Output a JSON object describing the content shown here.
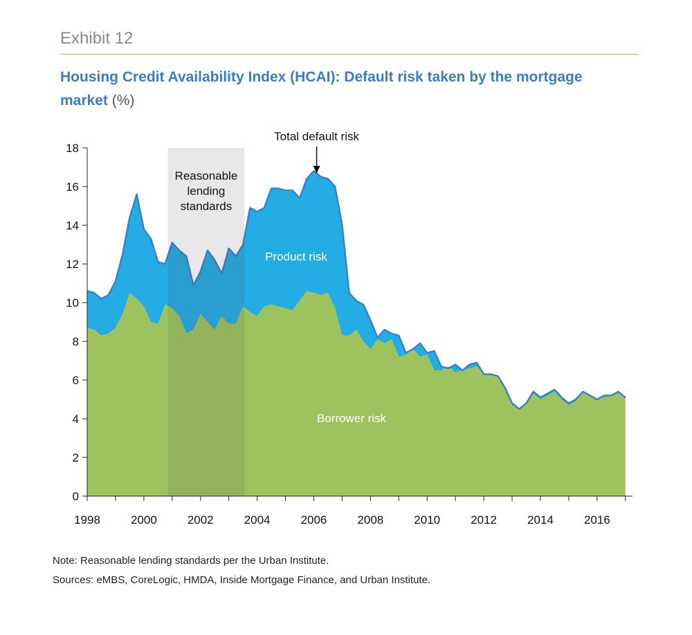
{
  "exhibit": "Exhibit 12",
  "title_main": "Housing Credit Availability Index (HCAI): Default risk taken by the mortgage market",
  "title_unit": "(%)",
  "notes": [
    "Note: Reasonable lending standards per the Urban Institute.",
    "Sources: eMBS, CoreLogic, HMDA, Inside Mortgage Finance, and Urban Institute."
  ],
  "colors": {
    "borrower": "#9dc35f",
    "product": "#24ace4",
    "line": "#3d80c7",
    "shade": "#4a4a4a"
  },
  "chart_data": {
    "type": "area",
    "title": "Housing Credit Availability Index (HCAI): Default risk taken by the mortgage market",
    "xlabel": "",
    "ylabel": "",
    "xlim": [
      1998,
      2017.25
    ],
    "ylim": [
      0,
      18
    ],
    "yticks": [
      0,
      2,
      4,
      6,
      8,
      10,
      12,
      14,
      16,
      18
    ],
    "xtick_labels": [
      "1998",
      "2000",
      "2002",
      "2004",
      "2006",
      "2008",
      "2010",
      "2012",
      "2014",
      "2016"
    ],
    "xtick_label_years": [
      1998,
      2000,
      2002,
      2004,
      2006,
      2008,
      2010,
      2012,
      2014,
      2016
    ],
    "shaded_region": {
      "label": "Reasonable lending standards",
      "lines": [
        "Reasonable",
        "lending",
        "standards"
      ],
      "x": [
        2000.85,
        2003.55
      ]
    },
    "annotations": {
      "total": "Total default risk",
      "total_x": 2006.1,
      "product": "Product risk",
      "borrower": "Borrower risk"
    },
    "x": [
      1998.0,
      1998.25,
      1998.5,
      1998.75,
      1999.0,
      1999.25,
      1999.5,
      1999.75,
      2000.0,
      2000.25,
      2000.5,
      2000.75,
      2001.0,
      2001.25,
      2001.5,
      2001.75,
      2002.0,
      2002.25,
      2002.5,
      2002.75,
      2003.0,
      2003.25,
      2003.5,
      2003.75,
      2004.0,
      2004.25,
      2004.5,
      2004.75,
      2005.0,
      2005.25,
      2005.5,
      2005.75,
      2006.0,
      2006.25,
      2006.5,
      2006.75,
      2007.0,
      2007.25,
      2007.5,
      2007.75,
      2008.0,
      2008.25,
      2008.5,
      2008.75,
      2009.0,
      2009.25,
      2009.5,
      2009.75,
      2010.0,
      2010.25,
      2010.5,
      2010.75,
      2011.0,
      2011.25,
      2011.5,
      2011.75,
      2012.0,
      2012.25,
      2012.5,
      2012.75,
      2013.0,
      2013.25,
      2013.5,
      2013.75,
      2014.0,
      2014.25,
      2014.5,
      2014.75,
      2015.0,
      2015.25,
      2015.5,
      2015.75,
      2016.0,
      2016.25,
      2016.5,
      2016.75,
      2017.0
    ],
    "series": [
      {
        "name": "Borrower risk",
        "values": [
          8.7,
          8.6,
          8.3,
          8.4,
          8.7,
          9.4,
          10.5,
          10.2,
          9.8,
          9.0,
          8.9,
          9.9,
          9.7,
          9.3,
          8.4,
          8.6,
          9.4,
          9.0,
          8.6,
          9.3,
          8.9,
          8.9,
          9.8,
          9.5,
          9.3,
          9.8,
          9.9,
          9.8,
          9.7,
          9.6,
          10.1,
          10.6,
          10.5,
          10.4,
          10.5,
          9.7,
          8.3,
          8.3,
          8.6,
          8.0,
          7.6,
          8.1,
          7.9,
          8.1,
          7.2,
          7.3,
          7.6,
          7.2,
          7.3,
          6.5,
          6.5,
          6.7,
          6.4,
          6.5,
          6.6,
          6.7,
          6.3,
          6.3,
          6.2,
          5.5,
          4.7,
          4.5,
          4.8,
          5.3,
          5.0,
          5.2,
          5.4,
          5.0,
          4.7,
          4.9,
          5.4,
          5.2,
          5.0,
          5.1,
          5.2,
          5.4,
          5.0
        ]
      },
      {
        "name": "Total default risk",
        "values": [
          10.6,
          10.5,
          10.2,
          10.4,
          11.1,
          12.5,
          14.4,
          15.6,
          13.8,
          13.3,
          12.1,
          12.0,
          13.1,
          12.7,
          12.4,
          10.9,
          11.6,
          12.7,
          12.2,
          11.5,
          12.8,
          12.4,
          13.0,
          14.9,
          14.7,
          14.9,
          15.9,
          15.9,
          15.8,
          15.8,
          15.4,
          16.4,
          16.8,
          16.5,
          16.4,
          16.0,
          14.0,
          10.5,
          10.1,
          9.9,
          9.1,
          8.2,
          8.6,
          8.4,
          8.3,
          7.4,
          7.6,
          7.9,
          7.4,
          7.5,
          6.7,
          6.6,
          6.8,
          6.5,
          6.8,
          6.9,
          6.3,
          6.3,
          6.2,
          5.6,
          4.8,
          4.5,
          4.8,
          5.4,
          5.1,
          5.3,
          5.5,
          5.1,
          4.8,
          5.0,
          5.4,
          5.2,
          5.0,
          5.2,
          5.2,
          5.4,
          5.1
        ]
      }
    ]
  }
}
